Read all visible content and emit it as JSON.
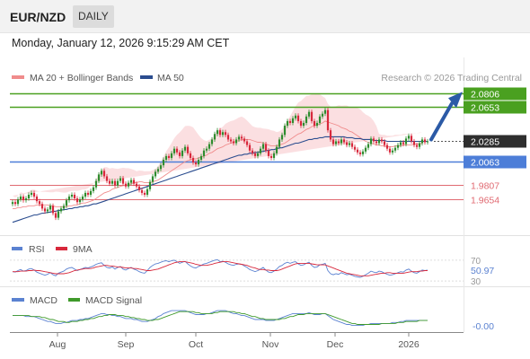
{
  "header": {
    "pair": "EUR/NZD",
    "period": "DAILY"
  },
  "datetime": "Monday, January 12, 2026 9:15:29 AM CET",
  "credit": "Research © 2026 Trading Central",
  "colors": {
    "bull": "#2e8c2e",
    "bear": "#d8283c",
    "level_green": "#4aa020",
    "level_blue": "#4d7ed8",
    "level_red": "#e06a72",
    "ma50": "#2b4d8f",
    "bollinger": "#f7c5c8",
    "arrow": "#2b5aa6",
    "rsi": "#5b82d1",
    "macd_signal": "#3f9a2b"
  },
  "chart_data": [
    {
      "type": "candlestick",
      "symbol": "EUR/NZD",
      "legend": [
        {
          "label": "MA 20 + Bollinger Bands",
          "color": "#f08c8c"
        },
        {
          "label": "MA 50",
          "color": "#2b4d8f"
        }
      ],
      "x_ticks": [
        "Aug",
        "Sep",
        "Oct",
        "Nov",
        "Dec",
        "2026"
      ],
      "ylim": [
        1.93,
        2.086
      ],
      "levels": [
        {
          "value": 2.0806,
          "label": "2.0806",
          "kind": "resistance"
        },
        {
          "value": 2.0653,
          "label": "2.0653",
          "kind": "resistance"
        },
        {
          "value": 2.0285,
          "label": "2.0285",
          "kind": "last"
        },
        {
          "value": 2.0063,
          "label": "2.0063",
          "kind": "pivot"
        },
        {
          "value": 1.9807,
          "label": "1.9807",
          "kind": "support"
        },
        {
          "value": 1.9654,
          "label": "1.9654",
          "kind": "support"
        }
      ],
      "close": [
        1.962,
        1.96,
        1.965,
        1.968,
        1.964,
        1.966,
        1.97,
        1.972,
        1.968,
        1.963,
        1.96,
        1.955,
        1.952,
        1.954,
        1.958,
        1.95,
        1.945,
        1.952,
        1.955,
        1.958,
        1.964,
        1.968,
        1.97,
        1.966,
        1.962,
        1.965,
        1.968,
        1.972,
        1.97,
        1.974,
        1.978,
        1.985,
        1.992,
        1.996,
        1.99,
        1.985,
        1.982,
        1.985,
        1.98,
        1.985,
        1.988,
        1.982,
        1.979,
        1.983,
        1.986,
        1.982,
        1.979,
        1.975,
        1.972,
        1.97,
        1.976,
        1.984,
        1.99,
        1.995,
        1.998,
        2.002,
        2.008,
        2.012,
        2.01,
        2.015,
        2.02,
        2.016,
        2.012,
        2.018,
        2.022,
        2.015,
        2.01,
        2.005,
        2.003,
        2.008,
        2.012,
        2.018,
        2.02,
        2.025,
        2.03,
        2.036,
        2.04,
        2.035,
        2.038,
        2.035,
        2.03,
        2.028,
        2.026,
        2.03,
        2.033,
        2.031,
        2.028,
        2.024,
        2.018,
        2.015,
        2.012,
        2.015,
        2.02,
        2.025,
        2.018,
        2.012,
        2.01,
        2.015,
        2.022,
        2.03,
        2.035,
        2.045,
        2.05,
        2.048,
        2.053,
        2.056,
        2.05,
        2.045,
        2.048,
        2.055,
        2.06,
        2.05,
        2.045,
        2.048,
        2.055,
        2.058,
        2.062,
        2.04,
        2.03,
        2.025,
        2.028,
        2.026,
        2.03,
        2.027,
        2.024,
        2.026,
        2.022,
        2.019,
        2.016,
        2.014,
        2.017,
        2.021,
        2.025,
        2.031,
        2.028,
        2.026,
        2.03,
        2.028,
        2.024,
        2.02,
        2.016,
        2.018,
        2.021,
        2.024,
        2.027,
        2.025,
        2.031,
        2.034,
        2.028,
        2.024,
        2.022,
        2.026,
        2.03,
        2.027,
        2.028
      ],
      "ma20": [
        1.955,
        1.955,
        1.956,
        1.956,
        1.957,
        1.957,
        1.958,
        1.958,
        1.958,
        1.959,
        1.959,
        1.959,
        1.959,
        1.959,
        1.958,
        1.958,
        1.957,
        1.957,
        1.957,
        1.957,
        1.957,
        1.958,
        1.958,
        1.959,
        1.959,
        1.96,
        1.961,
        1.961,
        1.962,
        1.963,
        1.964,
        1.966,
        1.968,
        1.97,
        1.972,
        1.973,
        1.974,
        1.976,
        1.977,
        1.978,
        1.979,
        1.98,
        1.98,
        1.981,
        1.982,
        1.983,
        1.983,
        1.984,
        1.984,
        1.983,
        1.983,
        1.983,
        1.984,
        1.985,
        1.986,
        1.988,
        1.99,
        1.992,
        1.994,
        1.996,
        1.998,
        2.0,
        2.002,
        2.004,
        2.006,
        2.007,
        2.008,
        2.009,
        2.009,
        2.01,
        2.011,
        2.012,
        2.013,
        2.015,
        2.016,
        2.018,
        2.02,
        2.021,
        2.022,
        2.024,
        2.025,
        2.026,
        2.027,
        2.028,
        2.029,
        2.03,
        2.03,
        2.03,
        2.03,
        2.029,
        2.028,
        2.027,
        2.027,
        2.026,
        2.025,
        2.024,
        2.023,
        2.023,
        2.023,
        2.024,
        2.025,
        2.026,
        2.028,
        2.03,
        2.032,
        2.034,
        2.036,
        2.037,
        2.039,
        2.041,
        2.042,
        2.044,
        2.045,
        2.046,
        2.047,
        2.048,
        2.05,
        2.049,
        2.048,
        2.047,
        2.046,
        2.045,
        2.043,
        2.042,
        2.041,
        2.039,
        2.038,
        2.036,
        2.034,
        2.032,
        2.03,
        2.028,
        2.027,
        2.026,
        2.025,
        2.024,
        2.024,
        2.023,
        2.023,
        2.022,
        2.022,
        2.022,
        2.023,
        2.023,
        2.023,
        2.024,
        2.024,
        2.024,
        2.024,
        2.025,
        2.025,
        2.025,
        2.026
      ],
      "ma50": [
        1.94,
        1.941,
        1.942,
        1.943,
        1.944,
        1.945,
        1.946,
        1.947,
        1.948,
        1.948,
        1.949,
        1.95,
        1.95,
        1.951,
        1.951,
        1.952,
        1.952,
        1.953,
        1.953,
        1.954,
        1.954,
        1.955,
        1.955,
        1.956,
        1.956,
        1.957,
        1.957,
        1.958,
        1.958,
        1.959,
        1.96,
        1.96,
        1.961,
        1.962,
        1.963,
        1.964,
        1.965,
        1.966,
        1.967,
        1.968,
        1.969,
        1.97,
        1.971,
        1.972,
        1.973,
        1.974,
        1.975,
        1.976,
        1.977,
        1.978,
        1.979,
        1.98,
        1.981,
        1.982,
        1.983,
        1.984,
        1.985,
        1.986,
        1.987,
        1.988,
        1.989,
        1.99,
        1.991,
        1.992,
        1.993,
        1.994,
        1.995,
        1.996,
        1.997,
        1.998,
        1.999,
        2.0,
        2.001,
        2.002,
        2.003,
        2.004,
        2.005,
        2.006,
        2.007,
        2.008,
        2.009,
        2.01,
        2.011,
        2.012,
        2.013,
        2.013,
        2.014,
        2.014,
        2.015,
        2.015,
        2.016,
        2.016,
        2.017,
        2.017,
        2.018,
        2.018,
        2.019,
        2.019,
        2.02,
        2.021,
        2.021,
        2.022,
        2.023,
        2.024,
        2.025,
        2.026,
        2.026,
        2.027,
        2.028,
        2.029,
        2.03,
        2.03,
        2.031,
        2.031,
        2.032,
        2.032,
        2.033,
        2.033,
        2.033,
        2.033,
        2.033,
        2.033,
        2.033,
        2.033,
        2.032,
        2.032,
        2.032,
        2.031,
        2.031,
        2.031,
        2.03,
        2.03,
        2.03,
        2.03,
        2.029,
        2.029,
        2.029,
        2.029,
        2.029,
        2.028,
        2.028,
        2.028,
        2.028,
        2.028,
        2.028,
        2.028,
        2.028,
        2.028,
        2.028,
        2.028,
        2.028,
        2.028,
        2.028,
        2.028,
        2.028
      ]
    },
    {
      "type": "line",
      "name": "RSI",
      "legend": [
        {
          "label": "RSI",
          "color": "#5b82d1"
        },
        {
          "label": "9MA",
          "color": "#d8283c"
        }
      ],
      "ylim": [
        25,
        75
      ],
      "ticks": [
        {
          "value": 70,
          "label": "70"
        },
        {
          "value": 30,
          "label": "30"
        }
      ],
      "last_value": 50.97,
      "last_label": "50.97",
      "rsi": [
        48,
        47,
        50,
        52,
        49,
        50,
        53,
        54,
        51,
        47,
        45,
        43,
        41,
        43,
        46,
        42,
        40,
        45,
        47,
        49,
        53,
        55,
        56,
        53,
        50,
        52,
        54,
        56,
        55,
        57,
        59,
        62,
        64,
        65,
        60,
        56,
        55,
        57,
        53,
        56,
        58,
        53,
        51,
        54,
        56,
        53,
        51,
        48,
        46,
        45,
        50,
        56,
        60,
        63,
        64,
        66,
        68,
        69,
        67,
        69,
        70,
        67,
        64,
        66,
        68,
        63,
        59,
        56,
        55,
        58,
        60,
        63,
        64,
        66,
        68,
        70,
        71,
        67,
        68,
        66,
        63,
        61,
        60,
        62,
        63,
        62,
        59,
        56,
        52,
        50,
        48,
        50,
        53,
        56,
        51,
        47,
        46,
        49,
        53,
        58,
        60,
        64,
        66,
        64,
        66,
        67,
        63,
        60,
        61,
        64,
        66,
        60,
        56,
        57,
        61,
        62,
        64,
        50,
        44,
        42,
        44,
        43,
        46,
        44,
        42,
        43,
        41,
        39,
        38,
        37,
        39,
        42,
        45,
        49,
        47,
        46,
        49,
        48,
        45,
        43,
        41,
        42,
        44,
        46,
        48,
        47,
        51,
        53,
        49,
        46,
        45,
        48,
        51,
        50,
        51
      ],
      "ma9": [
        48,
        48,
        48,
        49,
        49,
        49,
        50,
        50,
        51,
        50,
        50,
        49,
        48,
        47,
        46,
        45,
        44,
        44,
        44,
        44,
        45,
        46,
        48,
        50,
        51,
        52,
        53,
        54,
        54,
        54,
        55,
        57,
        58,
        59,
        60,
        60,
        59,
        59,
        58,
        57,
        57,
        56,
        55,
        55,
        55,
        54,
        54,
        53,
        52,
        51,
        50,
        50,
        51,
        52,
        53,
        55,
        57,
        59,
        61,
        63,
        65,
        66,
        67,
        67,
        67,
        66,
        65,
        64,
        62,
        61,
        60,
        60,
        60,
        61,
        62,
        64,
        65,
        66,
        67,
        67,
        67,
        66,
        65,
        64,
        63,
        62,
        61,
        60,
        58,
        56,
        55,
        53,
        52,
        52,
        51,
        51,
        50,
        50,
        50,
        51,
        53,
        55,
        57,
        59,
        61,
        63,
        64,
        64,
        64,
        64,
        64,
        63,
        62,
        61,
        61,
        61,
        61,
        59,
        57,
        55,
        53,
        51,
        49,
        47,
        45,
        44,
        43,
        42,
        41,
        40,
        40,
        40,
        40,
        41,
        42,
        43,
        44,
        45,
        45,
        46,
        46,
        45,
        45,
        45,
        45,
        45,
        46,
        47,
        48,
        48,
        48,
        49,
        49,
        50,
        50
      ]
    },
    {
      "type": "line",
      "name": "MACD",
      "legend": [
        {
          "label": "MACD",
          "color": "#5b82d1"
        },
        {
          "label": "MACD Signal",
          "color": "#3f9a2b"
        }
      ],
      "last_value": -0.0,
      "last_label": "-0.00",
      "macd": [
        0.004,
        0.004,
        0.004,
        0.004,
        0.004,
        0.003,
        0.003,
        0.003,
        0.003,
        0.002,
        0.001,
        0.0,
        -0.001,
        -0.002,
        -0.002,
        -0.003,
        -0.004,
        -0.004,
        -0.004,
        -0.003,
        -0.003,
        -0.002,
        -0.001,
        -0.001,
        -0.001,
        0.0,
        0.0,
        0.001,
        0.001,
        0.002,
        0.003,
        0.004,
        0.005,
        0.006,
        0.006,
        0.005,
        0.005,
        0.004,
        0.004,
        0.003,
        0.003,
        0.002,
        0.001,
        0.001,
        0.001,
        0.0,
        0.0,
        -0.001,
        -0.002,
        -0.002,
        -0.002,
        -0.001,
        0.0,
        0.001,
        0.003,
        0.004,
        0.006,
        0.007,
        0.008,
        0.009,
        0.009,
        0.009,
        0.009,
        0.009,
        0.009,
        0.008,
        0.007,
        0.006,
        0.005,
        0.005,
        0.005,
        0.005,
        0.006,
        0.006,
        0.007,
        0.008,
        0.009,
        0.009,
        0.009,
        0.009,
        0.008,
        0.007,
        0.006,
        0.006,
        0.005,
        0.004,
        0.004,
        0.003,
        0.002,
        0.001,
        0.0,
        0.0,
        0.0,
        0.0,
        -0.001,
        -0.001,
        -0.001,
        -0.001,
        0.0,
        0.001,
        0.002,
        0.003,
        0.004,
        0.005,
        0.006,
        0.006,
        0.006,
        0.006,
        0.006,
        0.006,
        0.007,
        0.006,
        0.005,
        0.005,
        0.005,
        0.006,
        0.006,
        0.004,
        0.002,
        0.0,
        -0.001,
        -0.002,
        -0.003,
        -0.004,
        -0.005,
        -0.005,
        -0.006,
        -0.006,
        -0.006,
        -0.006,
        -0.006,
        -0.005,
        -0.005,
        -0.004,
        -0.004,
        -0.004,
        -0.004,
        -0.004,
        -0.004,
        -0.004,
        -0.004,
        -0.003,
        -0.003,
        -0.003,
        -0.002,
        -0.002,
        -0.001,
        -0.001,
        -0.001,
        -0.001,
        -0.001,
        -0.001,
        -0.001,
        -0.001,
        -0.001
      ],
      "signal": [
        0.004,
        0.004,
        0.004,
        0.004,
        0.004,
        0.004,
        0.004,
        0.003,
        0.003,
        0.003,
        0.003,
        0.002,
        0.002,
        0.001,
        0.0,
        0.0,
        -0.001,
        -0.002,
        -0.002,
        -0.002,
        -0.003,
        -0.003,
        -0.002,
        -0.002,
        -0.002,
        -0.001,
        -0.001,
        0.0,
        0.0,
        0.001,
        0.001,
        0.002,
        0.003,
        0.003,
        0.004,
        0.004,
        0.005,
        0.005,
        0.005,
        0.004,
        0.004,
        0.004,
        0.003,
        0.003,
        0.002,
        0.002,
        0.001,
        0.001,
        0.0,
        0.0,
        -0.001,
        -0.001,
        -0.001,
        0.0,
        0.0,
        0.001,
        0.002,
        0.003,
        0.004,
        0.005,
        0.006,
        0.007,
        0.008,
        0.008,
        0.008,
        0.008,
        0.008,
        0.008,
        0.007,
        0.007,
        0.006,
        0.006,
        0.006,
        0.006,
        0.006,
        0.007,
        0.007,
        0.008,
        0.008,
        0.008,
        0.008,
        0.008,
        0.008,
        0.007,
        0.007,
        0.006,
        0.006,
        0.005,
        0.004,
        0.003,
        0.003,
        0.002,
        0.001,
        0.001,
        0.0,
        0.0,
        0.0,
        0.0,
        0.0,
        0.0,
        0.001,
        0.001,
        0.002,
        0.003,
        0.003,
        0.004,
        0.005,
        0.005,
        0.005,
        0.006,
        0.006,
        0.006,
        0.006,
        0.006,
        0.006,
        0.006,
        0.006,
        0.005,
        0.004,
        0.003,
        0.002,
        0.001,
        0.0,
        -0.001,
        -0.002,
        -0.003,
        -0.004,
        -0.004,
        -0.005,
        -0.005,
        -0.005,
        -0.005,
        -0.005,
        -0.005,
        -0.005,
        -0.005,
        -0.005,
        -0.004,
        -0.004,
        -0.004,
        -0.004,
        -0.004,
        -0.004,
        -0.003,
        -0.003,
        -0.003,
        -0.002,
        -0.002,
        -0.002,
        -0.002,
        -0.002,
        -0.001,
        -0.001,
        -0.001,
        -0.001
      ]
    }
  ]
}
